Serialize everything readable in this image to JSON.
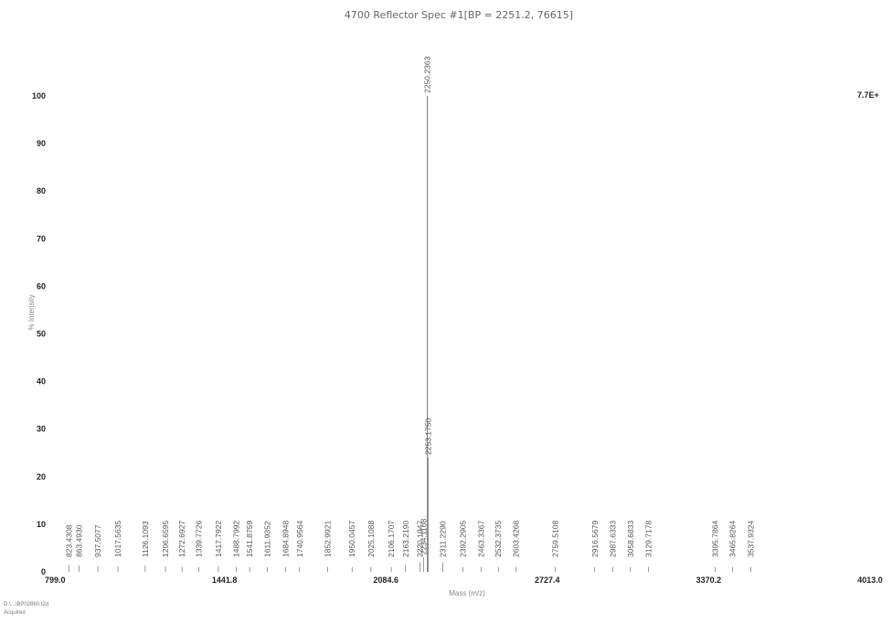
{
  "chart_data": {
    "type": "bar",
    "title": "4700 Reflector Spec #1[BP = 2251.2, 76615]",
    "xlabel": "Mass (m/z)",
    "ylabel": "% Intensity",
    "intensity_scale": "7.7E+",
    "xlim": [
      799.0,
      4013.0
    ],
    "ylim": [
      0,
      100
    ],
    "x_ticks": [
      "799.0",
      "1441.8",
      "2084.6",
      "2727.4",
      "3370.2",
      "4013.0"
    ],
    "y_ticks": [
      "0",
      "10",
      "20",
      "30",
      "40",
      "50",
      "60",
      "70",
      "80",
      "90",
      "100"
    ],
    "grid": false,
    "peaks": [
      {
        "mz": 823.4308,
        "label": "823.4308",
        "intensity": 1.5
      },
      {
        "mz": 863.493,
        "label": "863.4930",
        "intensity": 1.3
      },
      {
        "mz": 937.5077,
        "label": "937.5077",
        "intensity": 1.2
      },
      {
        "mz": 1017.5635,
        "label": "1017.5635",
        "intensity": 1.1
      },
      {
        "mz": 1126.1093,
        "label": "1126.1093",
        "intensity": 1.3
      },
      {
        "mz": 1206.6595,
        "label": "1206.6595",
        "intensity": 1.1
      },
      {
        "mz": 1272.6927,
        "label": "1272.6927",
        "intensity": 1.0
      },
      {
        "mz": 1339.7726,
        "label": "1339.7726",
        "intensity": 1.0
      },
      {
        "mz": 1417.7922,
        "label": "1417.7922",
        "intensity": 1.1
      },
      {
        "mz": 1488.7992,
        "label": "1488.7992",
        "intensity": 1.0
      },
      {
        "mz": 1541.8759,
        "label": "1541.8759",
        "intensity": 1.0
      },
      {
        "mz": 1611.9352,
        "label": "1611.9352",
        "intensity": 1.0
      },
      {
        "mz": 1684.8948,
        "label": "1684.8948",
        "intensity": 1.0
      },
      {
        "mz": 1740.9564,
        "label": "1740.9564",
        "intensity": 1.0
      },
      {
        "mz": 1852.9921,
        "label": "1852.9921",
        "intensity": 1.0
      },
      {
        "mz": 1950.0457,
        "label": "1950.0457",
        "intensity": 1.0
      },
      {
        "mz": 2025.1088,
        "label": "2025.1088",
        "intensity": 1.0
      },
      {
        "mz": 2106.1707,
        "label": "2106.1707",
        "intensity": 1.0
      },
      {
        "mz": 2163.219,
        "label": "2163.2190",
        "intensity": 1.5
      },
      {
        "mz": 2220.1947,
        "label": "2220.1947",
        "intensity": 2.0
      },
      {
        "mz": 2234.1168,
        "label": "2234.1168",
        "intensity": 3.0
      },
      {
        "mz": 2250.2363,
        "label": "2250.2363",
        "intensity": 100
      },
      {
        "mz": 2253.175,
        "label": "2253.1750",
        "intensity": 24
      },
      {
        "mz": 2311.229,
        "label": "2311.2290",
        "intensity": 2.0
      },
      {
        "mz": 2392.2905,
        "label": "2392.2905",
        "intensity": 1.0
      },
      {
        "mz": 2463.3367,
        "label": "2463.3367",
        "intensity": 1.0
      },
      {
        "mz": 2532.3735,
        "label": "2532.3735",
        "intensity": 1.0
      },
      {
        "mz": 2603.4268,
        "label": "2603.4268",
        "intensity": 1.0
      },
      {
        "mz": 2759.5108,
        "label": "2759.5108",
        "intensity": 1.0
      },
      {
        "mz": 2916.5679,
        "label": "2916.5679",
        "intensity": 1.0
      },
      {
        "mz": 2987.6333,
        "label": "2987.6333",
        "intensity": 1.0
      },
      {
        "mz": 3058.6833,
        "label": "3058.6833",
        "intensity": 1.0
      },
      {
        "mz": 3129.7178,
        "label": "3129.7178",
        "intensity": 1.0
      },
      {
        "mz": 3395.7864,
        "label": "3395.7864",
        "intensity": 1.0
      },
      {
        "mz": 3465.8264,
        "label": "3465.8264",
        "intensity": 1.0
      },
      {
        "mz": 3537.9324,
        "label": "3537.9324",
        "intensity": 1.0
      }
    ]
  },
  "footer": {
    "file_line": "D:\\...\\BP02860.t2d",
    "acquired_line": "Acquired"
  }
}
